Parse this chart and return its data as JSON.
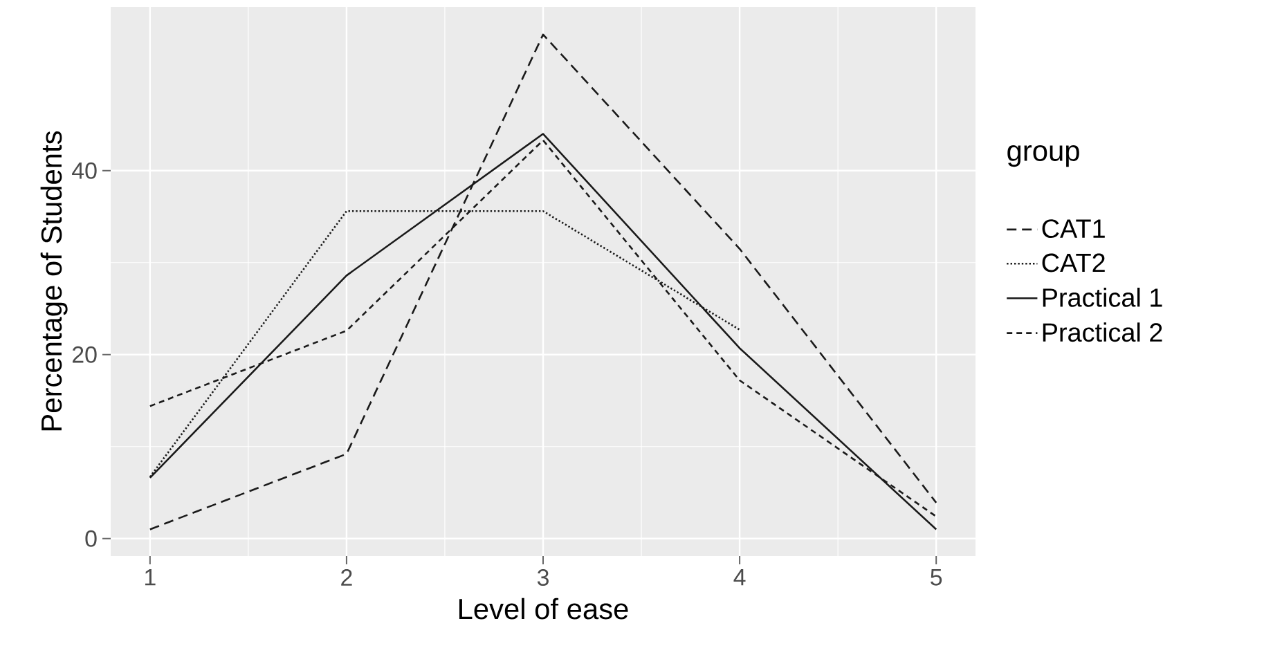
{
  "chart_data": {
    "type": "line",
    "xlabel": "Level of ease",
    "ylabel": "Percentage of Students",
    "legend_title": "group",
    "x": [
      1,
      2,
      3,
      4,
      5
    ],
    "series": [
      {
        "name": "CAT1",
        "color": "#1a1a1a",
        "line_style": "dashed",
        "values": [
          1.0,
          9.2,
          54.8,
          31.5,
          3.9
        ]
      },
      {
        "name": "CAT2",
        "color": "#1a1a1a",
        "line_style": "dotted",
        "values": [
          6.7,
          35.6,
          35.6,
          22.7,
          null
        ]
      },
      {
        "name": "Practical 1",
        "color": "#1a1a1a",
        "line_style": "solid",
        "values": [
          6.6,
          28.6,
          44.0,
          20.7,
          1.0
        ]
      },
      {
        "name": "Practical 2",
        "color": "#1a1a1a",
        "line_style": "densely dashed",
        "values": [
          14.4,
          22.6,
          43.3,
          17.2,
          2.4
        ]
      }
    ],
    "xlim": [
      0.8,
      5.2
    ],
    "ylim": [
      -1.9,
      57.8
    ],
    "xticks": [
      1,
      2,
      3,
      4,
      5
    ],
    "yticks": [
      0,
      20,
      40
    ],
    "grid": true,
    "legend": "right"
  }
}
